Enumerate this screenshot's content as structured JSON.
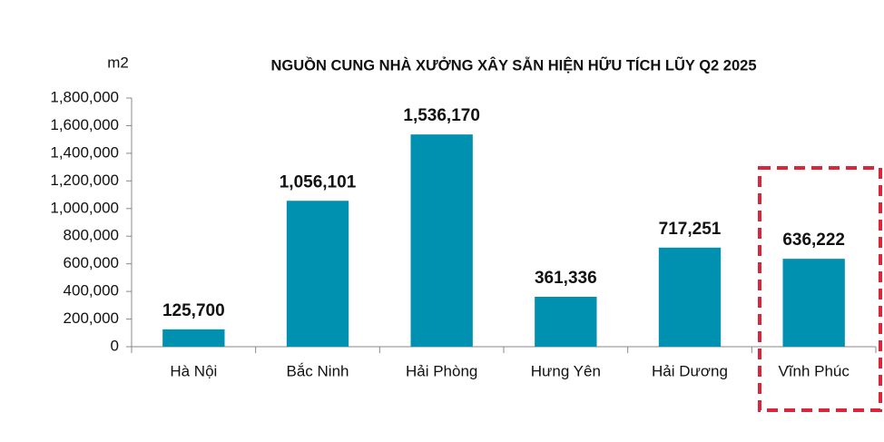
{
  "chart_data": {
    "type": "bar",
    "title": "NGUỒN CUNG NHÀ XƯỞNG XÂY SẴN HIỆN HỮU TÍCH LŨY Q2 2025",
    "ylabel": "m2",
    "categories": [
      "Hà Nội",
      "Bắc Ninh",
      "Hải Phòng",
      "Hưng Yên",
      "Hải Dương",
      "Vĩnh Phúc"
    ],
    "values": [
      125700,
      1056101,
      1536170,
      361336,
      717251,
      636222
    ],
    "value_labels": [
      "125,700",
      "1,056,101",
      "1,536,170",
      "361,336",
      "717,251",
      "636,222"
    ],
    "color": "#0090b0",
    "ylim": [
      0,
      1800000
    ],
    "yticks": [
      0,
      {
        "value": 200000,
        "label": "200,000"
      },
      {
        "value": 400000,
        "label": "400,000"
      },
      {
        "value": 600000,
        "label": "600,000"
      },
      {
        "value": 800000,
        "label": "800,000"
      },
      {
        "value": 1000000,
        "label": "1,000,000"
      },
      {
        "value": 1200000,
        "label": "1,200,000"
      },
      {
        "value": 1400000,
        "label": "1,400,000"
      },
      {
        "value": 1600000,
        "label": "1,600,000"
      },
      {
        "value": 1800000,
        "label": "1,800,000"
      }
    ],
    "grid": false
  }
}
